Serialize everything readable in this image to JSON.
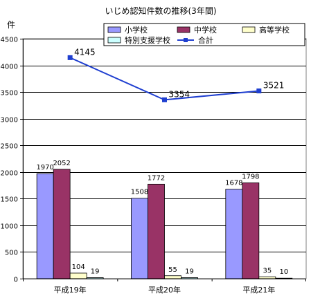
{
  "chart_data": {
    "type": "bar",
    "title": "いじめ認知件数の推移(3年間)",
    "ylabel": "件",
    "xlabel": "",
    "categories": [
      "平成19年",
      "平成20年",
      "平成21年"
    ],
    "ylim": [
      0,
      4500
    ],
    "yticks": [
      0,
      500,
      1000,
      1500,
      2000,
      2500,
      3000,
      3500,
      4000,
      4500
    ],
    "grid": true,
    "legend_position": "top-right",
    "series": [
      {
        "name": "小学校",
        "kind": "bar",
        "values": [
          1970,
          1508,
          1678
        ],
        "color": "#9999ff"
      },
      {
        "name": "中学校",
        "kind": "bar",
        "values": [
          2052,
          1772,
          1798
        ],
        "color": "#993366"
      },
      {
        "name": "高等学校",
        "kind": "bar",
        "values": [
          104,
          55,
          35
        ],
        "color": "#ffffcc"
      },
      {
        "name": "特別支援学校",
        "kind": "bar",
        "values": [
          19,
          19,
          10
        ],
        "color": "#ccffff"
      },
      {
        "name": "合計",
        "kind": "line",
        "values": [
          4145,
          3354,
          3521
        ],
        "color": "#1f3fd0"
      }
    ]
  }
}
